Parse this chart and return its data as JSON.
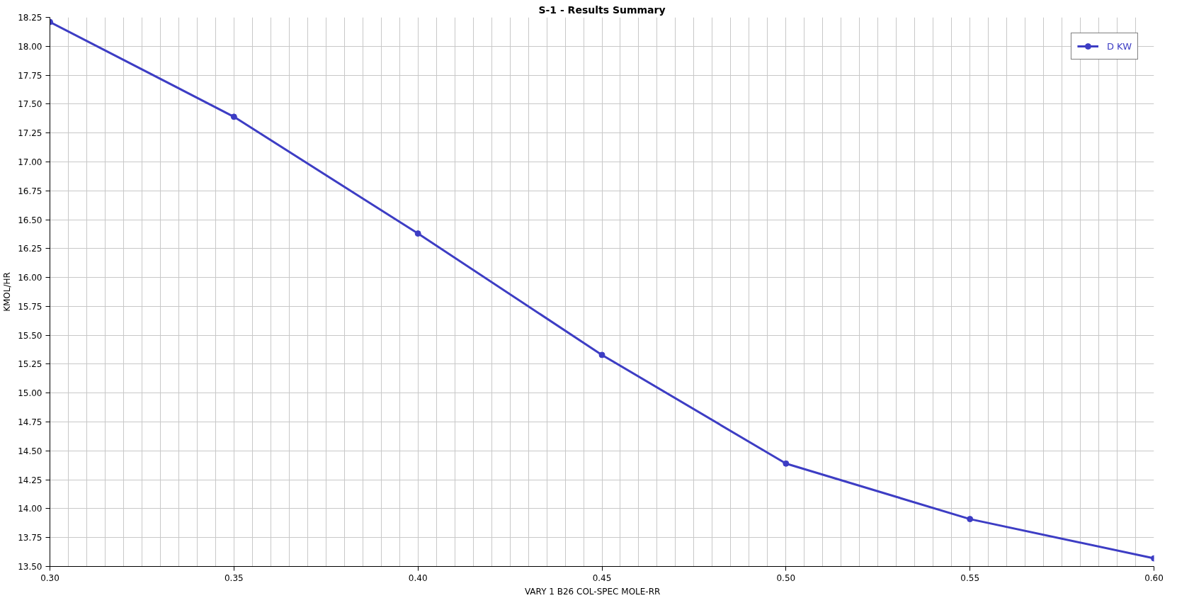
{
  "chart_data": {
    "type": "line",
    "title": "S-1 - Results Summary",
    "xlabel": "VARY   1 B26      COL-SPEC MOLE-RR",
    "ylabel": "KMOL/HR",
    "x": [
      0.3,
      0.35,
      0.4,
      0.45,
      0.5,
      0.55,
      0.6
    ],
    "series": [
      {
        "name": "D KW",
        "color": "#3d3dc4",
        "values": [
          18.21,
          17.39,
          16.38,
          15.33,
          14.39,
          13.91,
          13.57
        ]
      }
    ],
    "xlim": [
      0.3,
      0.6
    ],
    "ylim": [
      13.5,
      18.25
    ],
    "xticks": [
      {
        "value": 0.3,
        "label": "0.30"
      },
      {
        "value": 0.35,
        "label": "0.35"
      },
      {
        "value": 0.4,
        "label": "0.40"
      },
      {
        "value": 0.45,
        "label": "0.45"
      },
      {
        "value": 0.5,
        "label": "0.50"
      },
      {
        "value": 0.55,
        "label": "0.55"
      },
      {
        "value": 0.6,
        "label": "0.60"
      }
    ],
    "yticks": [
      {
        "value": 13.5,
        "label": "13.50"
      },
      {
        "value": 13.75,
        "label": "13.75"
      },
      {
        "value": 14.0,
        "label": "14.00"
      },
      {
        "value": 14.25,
        "label": "14.25"
      },
      {
        "value": 14.5,
        "label": "14.50"
      },
      {
        "value": 14.75,
        "label": "14.75"
      },
      {
        "value": 15.0,
        "label": "15.00"
      },
      {
        "value": 15.25,
        "label": "15.25"
      },
      {
        "value": 15.5,
        "label": "15.50"
      },
      {
        "value": 15.75,
        "label": "15.75"
      },
      {
        "value": 16.0,
        "label": "16.00"
      },
      {
        "value": 16.25,
        "label": "16.25"
      },
      {
        "value": 16.5,
        "label": "16.50"
      },
      {
        "value": 16.75,
        "label": "16.75"
      },
      {
        "value": 17.0,
        "label": "17.00"
      },
      {
        "value": 17.25,
        "label": "17.25"
      },
      {
        "value": 17.5,
        "label": "17.50"
      },
      {
        "value": 17.75,
        "label": "17.75"
      },
      {
        "value": 18.0,
        "label": "18.00"
      },
      {
        "value": 18.25,
        "label": "18.25"
      }
    ],
    "grid": true,
    "legend": "top right",
    "marker": "circle",
    "line_style": "solid"
  }
}
